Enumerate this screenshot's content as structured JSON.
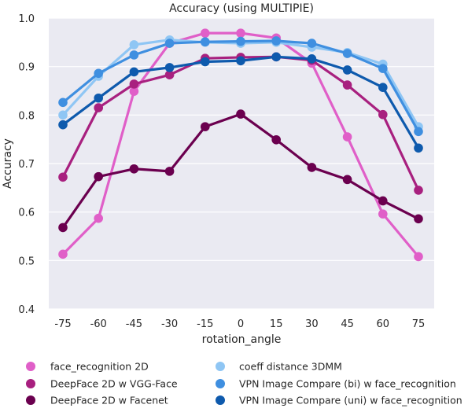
{
  "chart_data": {
    "type": "line",
    "title": "Accuracy (using MULTIPIE)",
    "xlabel": "rotation_angle",
    "ylabel": "Accuracy",
    "categories": [
      "-75",
      "-60",
      "-45",
      "-30",
      "-15",
      "0",
      "15",
      "30",
      "45",
      "60",
      "75"
    ],
    "ylim": [
      0.4,
      1.0
    ],
    "yticks": [
      "0.4",
      "0.5",
      "0.6",
      "0.7",
      "0.8",
      "0.9",
      "1.0"
    ],
    "grid": true,
    "legend_position": "bottom",
    "background": "#eaeaf2",
    "series": [
      {
        "name": "face_recognition 2D",
        "color": "#e05fc8",
        "values": [
          0.513,
          0.587,
          0.849,
          0.948,
          0.969,
          0.969,
          0.959,
          0.907,
          0.755,
          0.596,
          0.508
        ]
      },
      {
        "name": "DeepFace 2D w VGG-Face",
        "color": "#a8207f",
        "values": [
          0.672,
          0.815,
          0.864,
          0.883,
          0.917,
          0.919,
          0.92,
          0.913,
          0.862,
          0.801,
          0.645
        ]
      },
      {
        "name": "DeepFace 2D w Facenet",
        "color": "#6b004f",
        "values": [
          0.568,
          0.673,
          0.689,
          0.684,
          0.776,
          0.802,
          0.749,
          0.692,
          0.667,
          0.623,
          0.586
        ]
      },
      {
        "name": "coeff distance 3DMM",
        "color": "#8fc6f4",
        "values": [
          0.8,
          0.88,
          0.945,
          0.955,
          0.95,
          0.948,
          0.95,
          0.94,
          0.929,
          0.905,
          0.776
        ]
      },
      {
        "name": "VPN Image Compare (bi) w face_recognition",
        "color": "#3f8fe0",
        "values": [
          0.826,
          0.886,
          0.924,
          0.948,
          0.951,
          0.952,
          0.953,
          0.948,
          0.927,
          0.896,
          0.766
        ]
      },
      {
        "name": "VPN Image Compare (uni) w face_recognition",
        "color": "#0e5aad",
        "values": [
          0.78,
          0.835,
          0.889,
          0.898,
          0.91,
          0.912,
          0.92,
          0.916,
          0.893,
          0.857,
          0.732
        ]
      }
    ]
  }
}
